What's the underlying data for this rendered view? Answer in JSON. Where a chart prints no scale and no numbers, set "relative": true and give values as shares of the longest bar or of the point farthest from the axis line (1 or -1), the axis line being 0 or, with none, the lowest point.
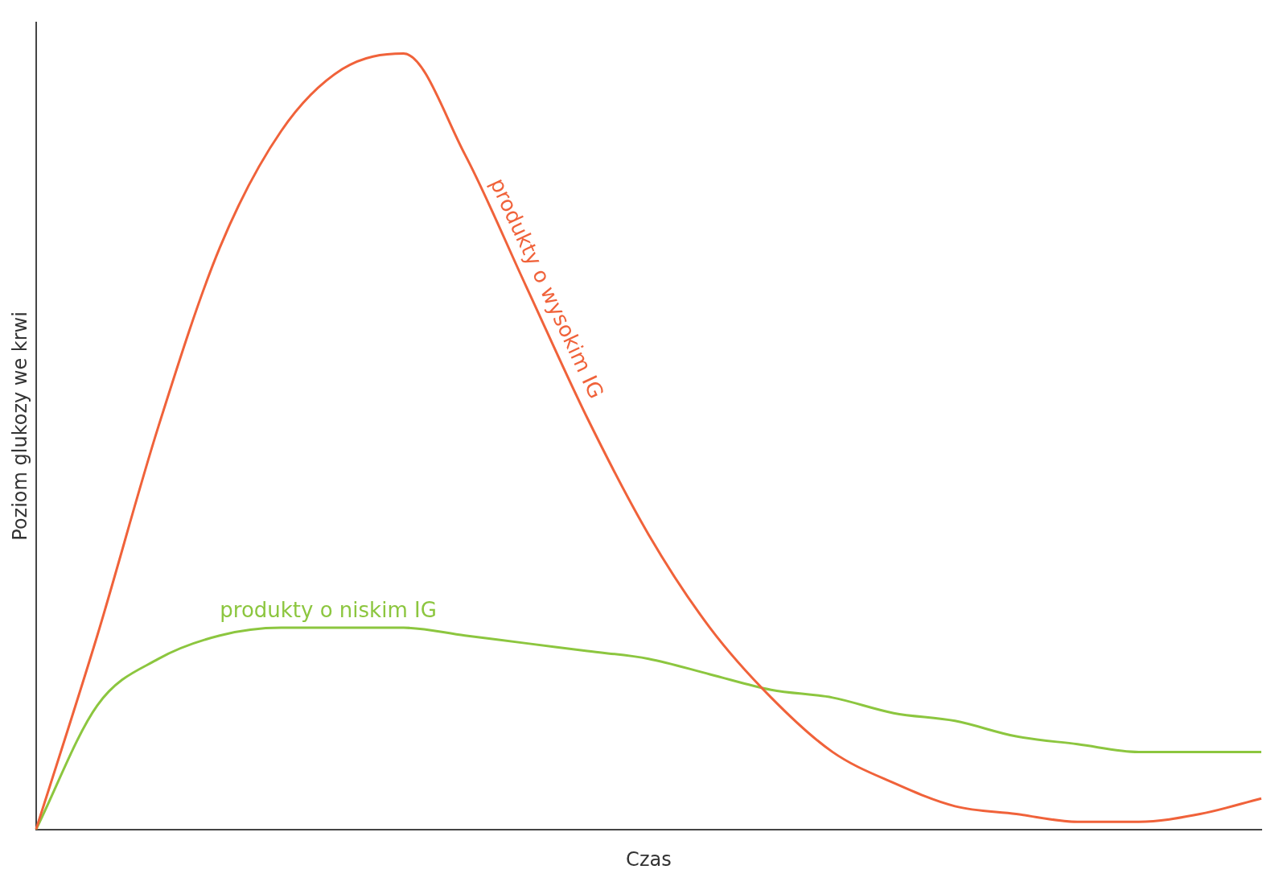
{
  "chart_data": {
    "type": "line",
    "relative": true,
    "xlabel": "Czas",
    "ylabel": "Poziom glukozy we krwi",
    "grid": false,
    "legend": false,
    "marker": "none",
    "line_style": "solid",
    "categories": [
      null,
      null,
      null,
      null,
      null,
      null,
      null,
      null,
      null,
      null,
      null,
      null,
      null,
      null,
      null,
      null,
      null,
      null,
      null,
      null,
      null
    ],
    "series": [
      {
        "name": "produkty o wysokim IG",
        "color": "#f0623a",
        "values": [
          0,
          0.25,
          0.52,
          0.75,
          0.9,
          0.98,
          1,
          0.87,
          0.7,
          0.53,
          0.38,
          0.26,
          0.17,
          0.1,
          0.06,
          0.03,
          0.02,
          0.01,
          0.01,
          0.02,
          0.04
        ]
      },
      {
        "name": "produkty o niskim IG",
        "color": "#8cc63f",
        "values": [
          0,
          0.16,
          0.22,
          0.25,
          0.26,
          0.26,
          0.26,
          0.25,
          0.24,
          0.23,
          0.22,
          0.2,
          0.18,
          0.17,
          0.15,
          0.14,
          0.12,
          0.11,
          0.1,
          0.1,
          0.1
        ]
      }
    ]
  }
}
